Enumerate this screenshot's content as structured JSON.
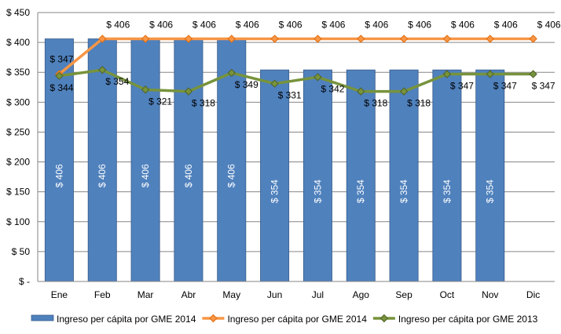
{
  "chart_data": {
    "type": "bar",
    "categories": [
      "Ene",
      "Feb",
      "Mar",
      "Abr",
      "May",
      "Jun",
      "Jul",
      "Ago",
      "Sep",
      "Oct",
      "Nov",
      "Dic"
    ],
    "ylim": [
      0,
      450
    ],
    "yticks": [
      0,
      50,
      100,
      150,
      200,
      250,
      300,
      350,
      400,
      450
    ],
    "ytick_labels": [
      "$ -",
      "$ 50",
      "$ 100",
      "$ 150",
      "$ 200",
      "$ 250",
      "$ 300",
      "$ 350",
      "$ 400",
      "$ 450"
    ],
    "grid": true,
    "legend_position": "bottom",
    "series": [
      {
        "name": "Ingreso per cápita por GME 2014",
        "kind": "bar",
        "color": "#4F81BD",
        "values": [
          406,
          406,
          406,
          406,
          406,
          354,
          354,
          354,
          354,
          354,
          354,
          null
        ],
        "labels": [
          "$ 406",
          "$ 406",
          "$ 406",
          "$ 406",
          "$ 406",
          "$ 354",
          "$ 354",
          "$ 354",
          "$ 354",
          "$ 354",
          "$ 354",
          ""
        ]
      },
      {
        "name": "Ingreso per cápita por GME 2014",
        "kind": "line",
        "color": "#F79646",
        "values": [
          347,
          406,
          406,
          406,
          406,
          406,
          406,
          406,
          406,
          406,
          406,
          406
        ],
        "labels": [
          "$ 347",
          "$ 406",
          "$ 406",
          "$ 406",
          "$ 406",
          "$ 406",
          "$ 406",
          "$ 406",
          "$ 406",
          "$ 406",
          "$ 406",
          "$ 406"
        ]
      },
      {
        "name": "Ingreso per cápita por GME 2013",
        "kind": "line",
        "color": "#77933C",
        "values": [
          344,
          354,
          321,
          318,
          349,
          331,
          342,
          318,
          318,
          347,
          347,
          347
        ],
        "labels": [
          "$ 344",
          "$ 354",
          "$ 321",
          "$ 318",
          "$ 349",
          "$ 331",
          "$ 342",
          "$ 318",
          "$ 318",
          "$ 347",
          "$ 347",
          "$ 347"
        ]
      }
    ]
  }
}
